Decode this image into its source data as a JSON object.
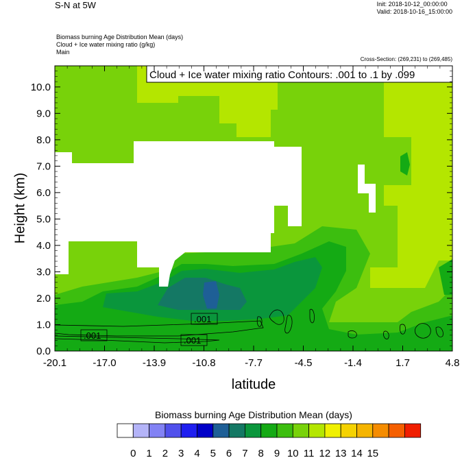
{
  "header": {
    "title": "S-N at 5W",
    "init": "Init: 2018-10-12_00:00:00",
    "valid": "Valid: 2018-10-16_15:00:00",
    "desc_line1": "Biomass burning Age Distribution Mean   (days)",
    "desc_line2": "Cloud + Ice water mixing ratio   (g/kg)",
    "desc_line3": "Main",
    "cross_section": "Cross-Section: (269,231) to (269,485)"
  },
  "chart_data": {
    "type": "heatmap",
    "contour_label": "Cloud + Ice water mixing ratio Contours: .001 to .1 by .099",
    "xlabel": "latitude",
    "ylabel": "Height (km)",
    "xlim": [
      -20.1,
      4.8
    ],
    "ylim": [
      0.0,
      10.8
    ],
    "x_ticks": [
      "-20.1",
      "-17.0",
      "-13.9",
      "-10.8",
      "-7.7",
      "-4.5",
      "-1.4",
      "1.7",
      "4.8"
    ],
    "y_ticks": [
      "0.0",
      "1.0",
      "2.0",
      "3.0",
      "4.0",
      "5.0",
      "6.0",
      "7.0",
      "8.0",
      "9.0",
      "10.0"
    ],
    "contour_value_labels": [
      ".001",
      ".001",
      ".001"
    ],
    "colorbar": {
      "title": "Biomass burning Age Distribution Mean  (days)",
      "levels": [
        "0",
        "1",
        "2",
        "3",
        "4",
        "5",
        "6",
        "7",
        "8",
        "9",
        "10",
        "11",
        "12",
        "13",
        "14",
        "15"
      ],
      "colors": [
        "#ffffff",
        "#b4b4f8",
        "#8282f4",
        "#5050ec",
        "#1e1ef0",
        "#0000c8",
        "#1e5f96",
        "#147864",
        "#0a963c",
        "#14aa14",
        "#3cbe0f",
        "#78d20a",
        "#b4e600",
        "#f0f000",
        "#f5d200",
        "#f5b400",
        "#f58c00",
        "#f55f00",
        "#f01e00"
      ]
    }
  }
}
